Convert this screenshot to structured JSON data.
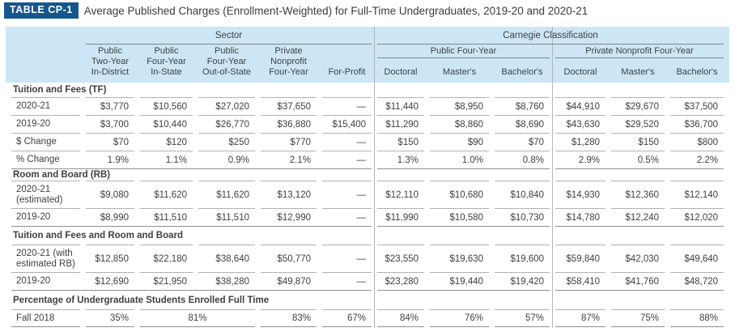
{
  "title": {
    "badge": "TABLE CP-1",
    "text": "Average Published Charges (Enrollment-Weighted) for Full-Time Undergraduates, 2019-20 and 2020-21"
  },
  "header": {
    "sector_group": "Sector",
    "carnegie_group": "Carnegie Classification",
    "public_subgroup": "Public Four-Year",
    "private_subgroup": "Private Nonprofit Four-Year",
    "sector_columns": [
      "Public\nTwo-Year\nIn-District",
      "Public\nFour-Year\nIn-State",
      "Public\nFour-Year\nOut-of-State",
      "Private\nNonprofit\nFour-Year",
      "For-Profit"
    ],
    "carnegie_columns": [
      "Doctoral",
      "Master's",
      "Bachelor's",
      "Doctoral",
      "Master's",
      "Bachelor's"
    ]
  },
  "colors": {
    "accent_blue": "#15568E",
    "header_band_blue": "#CCE6F5"
  },
  "sections": [
    {
      "label": "Tuition and Fees (TF)",
      "rows": [
        {
          "label": "2020-21",
          "cells": [
            "$3,770",
            "$10,560",
            "$27,020",
            "$37,650",
            "—",
            "$11,440",
            "$8,950",
            "$8,760",
            "$44,910",
            "$29,670",
            "$37,500"
          ]
        },
        {
          "label": "2019-20",
          "cells": [
            "$3,700",
            "$10,440",
            "$26,770",
            "$36,880",
            "$15,400",
            "$11,290",
            "$8,860",
            "$8,690",
            "$43,630",
            "$29,520",
            "$36,700"
          ]
        },
        {
          "label": "$ Change",
          "cells": [
            "$70",
            "$120",
            "$250",
            "$770",
            "—",
            "$150",
            "$90",
            "$70",
            "$1,280",
            "$150",
            "$800"
          ]
        },
        {
          "label": "% Change",
          "cells": [
            "1.9%",
            "1.1%",
            "0.9%",
            "2.1%",
            "—",
            "1.3%",
            "1.0%",
            "0.8%",
            "2.9%",
            "0.5%",
            "2.2%"
          ]
        }
      ]
    },
    {
      "label": "Room and Board (RB)",
      "rows": [
        {
          "label": "2020-21\n(estimated)",
          "cells": [
            "$9,080",
            "$11,620",
            "$11,620",
            "$13,120",
            "—",
            "$12,110",
            "$10,680",
            "$10,840",
            "$14,930",
            "$12,360",
            "$12,140"
          ]
        },
        {
          "label": "2019-20",
          "cells": [
            "$8,990",
            "$11,510",
            "$11,510",
            "$12,990",
            "—",
            "$11,990",
            "$10,580",
            "$10,730",
            "$14,780",
            "$12,240",
            "$12,020"
          ]
        }
      ]
    },
    {
      "label": "Tuition and Fees and Room and Board",
      "rows": [
        {
          "label": "2020-21 (with\nestimated RB)",
          "cells": [
            "$12,850",
            "$22,180",
            "$38,640",
            "$50,770",
            "—",
            "$23,550",
            "$19,630",
            "$19,600",
            "$59,840",
            "$42,030",
            "$49,640"
          ]
        },
        {
          "label": "2019-20",
          "cells": [
            "$12,690",
            "$21,950",
            "$38,280",
            "$49,870",
            "—",
            "$23,280",
            "$19,440",
            "$19,420",
            "$58,410",
            "$41,760",
            "$48,720"
          ]
        }
      ]
    },
    {
      "label": "Percentage of Undergraduate Students Enrolled Full Time",
      "rows": [
        {
          "label": "Fall 2018",
          "cells": [
            "35%",
            {
              "v": "81%",
              "span": 2,
              "align": "center"
            },
            "83%",
            "67%",
            "84%",
            "76%",
            "57%",
            "87%",
            "75%",
            "88%"
          ]
        }
      ]
    }
  ]
}
